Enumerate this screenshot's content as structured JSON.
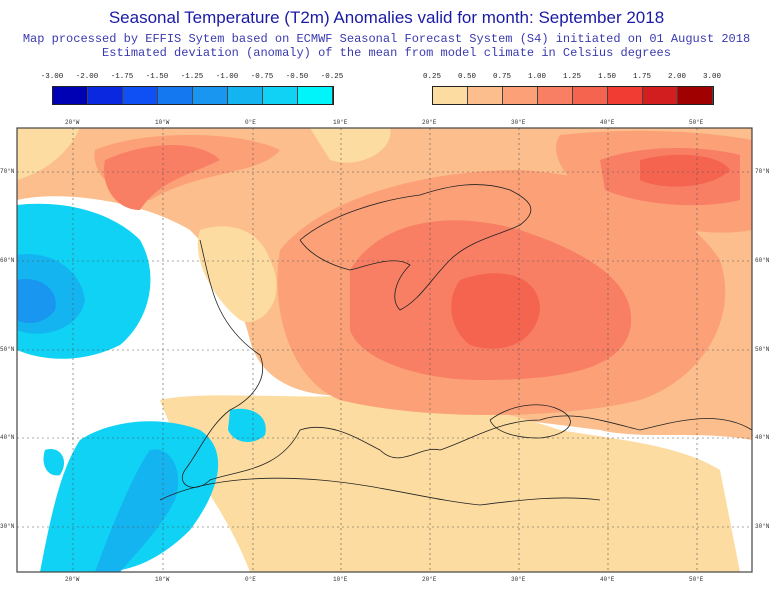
{
  "title": "Seasonal Temperature (T2m) Anomalies valid for month: September 2018",
  "subtitle1": "Map processed by EFFIS Sytem based on ECMWF Seasonal Forecast System (S4) initiated on 01 August 2018",
  "subtitle2": "Estimated deviation (anomaly) of the mean from model climate in Celsius degrees",
  "legend_negative": {
    "labels": [
      "-3.00",
      "-2.00",
      "-1.75",
      "-1.50",
      "-1.25",
      "-1.00",
      "-0.75",
      "-0.50",
      "-0.25"
    ],
    "colors": [
      "#0000b4",
      "#0a28e0",
      "#0f50f5",
      "#1478f0",
      "#1996f0",
      "#14b4f0",
      "#0fd2f5",
      "#00f5fa"
    ]
  },
  "legend_positive": {
    "labels": [
      "0.25",
      "0.50",
      "0.75",
      "1.00",
      "1.25",
      "1.50",
      "1.75",
      "2.00",
      "3.00"
    ],
    "colors": [
      "#fcdca0",
      "#fcbe8c",
      "#fca078",
      "#f87f64",
      "#f5644e",
      "#f03c32",
      "#d21e1e",
      "#a00000"
    ]
  },
  "lon_labels": [
    "20°W",
    "10°W",
    "0°E",
    "10°E",
    "20°E",
    "30°E",
    "40°E",
    "50°E"
  ],
  "lat_labels": [
    "70°N",
    "60°N",
    "50°N",
    "40°N",
    "30°N"
  ]
}
